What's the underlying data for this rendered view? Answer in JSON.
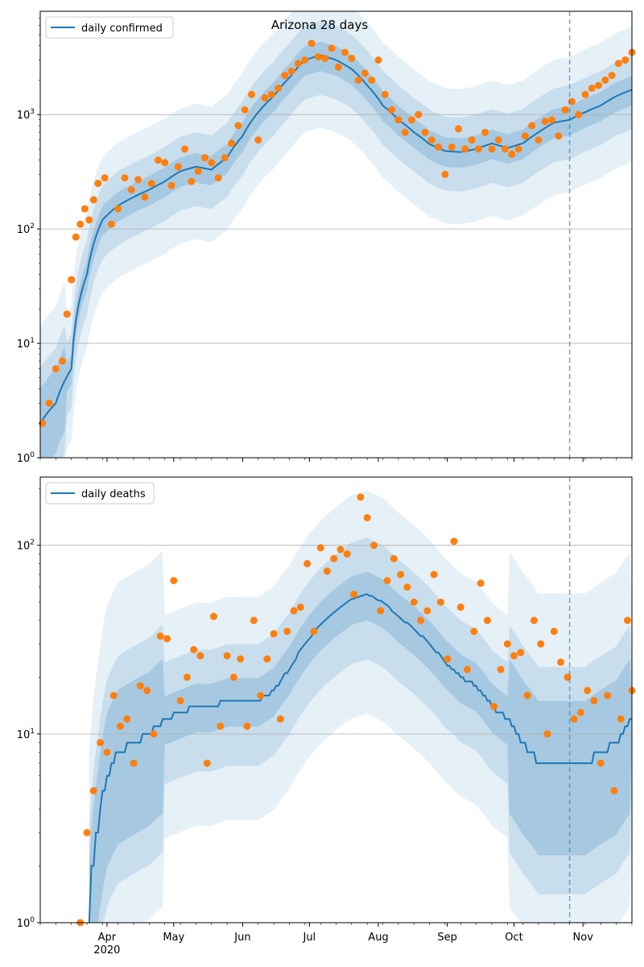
{
  "figure": {
    "title": "Arizona 28 days"
  },
  "chart_data": [
    {
      "type": "line",
      "yscale": "log",
      "ylim": [
        1,
        8000
      ],
      "xlim": [
        "2020-03-02",
        "2020-11-23"
      ],
      "grid": true,
      "legend": {
        "position": "top-left",
        "entries": [
          "daily confirmed"
        ]
      },
      "y_tick_labels": [
        "10^0",
        "10^1",
        "10^2",
        "10^3"
      ],
      "forecast_start": "2020-10-26",
      "series": [
        {
          "name": "daily confirmed",
          "x": [
            "2020-03-02",
            "2020-03-09",
            "2020-03-16",
            "2020-03-23",
            "2020-03-30",
            "2020-04-06",
            "2020-04-13",
            "2020-04-20",
            "2020-04-27",
            "2020-05-04",
            "2020-05-11",
            "2020-05-18",
            "2020-05-25",
            "2020-06-01",
            "2020-06-08",
            "2020-06-15",
            "2020-06-22",
            "2020-06-29",
            "2020-07-06",
            "2020-07-13",
            "2020-07-20",
            "2020-07-27",
            "2020-08-03",
            "2020-08-10",
            "2020-08-17",
            "2020-08-24",
            "2020-08-31",
            "2020-09-07",
            "2020-09-14",
            "2020-09-21",
            "2020-09-28",
            "2020-10-05",
            "2020-10-12",
            "2020-10-19",
            "2020-10-26",
            "2020-11-02",
            "2020-11-09",
            "2020-11-16",
            "2020-11-23"
          ],
          "y": [
            2,
            3,
            6,
            40,
            120,
            160,
            190,
            220,
            260,
            320,
            350,
            330,
            420,
            650,
            1050,
            1450,
            2100,
            3000,
            3300,
            3000,
            2500,
            1800,
            1200,
            900,
            700,
            550,
            480,
            470,
            500,
            560,
            510,
            560,
            700,
            850,
            900,
            1050,
            1200,
            1450,
            1650
          ]
        }
      ],
      "observations_confirmed": {
        "x": [
          "2020-03-03",
          "2020-03-06",
          "2020-03-09",
          "2020-03-12",
          "2020-03-14",
          "2020-03-16",
          "2020-03-18",
          "2020-03-20",
          "2020-03-22",
          "2020-03-24",
          "2020-03-26",
          "2020-03-28",
          "2020-03-31",
          "2020-04-03",
          "2020-04-06",
          "2020-04-09",
          "2020-04-12",
          "2020-04-15",
          "2020-04-18",
          "2020-04-21",
          "2020-04-24",
          "2020-04-27",
          "2020-04-30",
          "2020-05-03",
          "2020-05-06",
          "2020-05-09",
          "2020-05-12",
          "2020-05-15",
          "2020-05-18",
          "2020-05-21",
          "2020-05-24",
          "2020-05-27",
          "2020-05-30",
          "2020-06-02",
          "2020-06-05",
          "2020-06-08",
          "2020-06-11",
          "2020-06-14",
          "2020-06-17",
          "2020-06-20",
          "2020-06-23",
          "2020-06-26",
          "2020-06-29",
          "2020-07-02",
          "2020-07-05",
          "2020-07-08",
          "2020-07-11",
          "2020-07-14",
          "2020-07-17",
          "2020-07-20",
          "2020-07-23",
          "2020-07-26",
          "2020-07-29",
          "2020-08-01",
          "2020-08-04",
          "2020-08-07",
          "2020-08-10",
          "2020-08-13",
          "2020-08-16",
          "2020-08-19",
          "2020-08-22",
          "2020-08-25",
          "2020-08-28",
          "2020-08-31",
          "2020-09-03",
          "2020-09-06",
          "2020-09-09",
          "2020-09-12",
          "2020-09-15",
          "2020-09-18",
          "2020-09-21",
          "2020-09-24",
          "2020-09-27",
          "2020-09-30",
          "2020-10-03",
          "2020-10-06",
          "2020-10-09",
          "2020-10-12",
          "2020-10-15",
          "2020-10-18",
          "2020-10-21",
          "2020-10-24",
          "2020-10-27",
          "2020-10-30",
          "2020-11-02",
          "2020-11-05",
          "2020-11-08",
          "2020-11-11",
          "2020-11-14",
          "2020-11-17",
          "2020-11-20",
          "2020-11-23"
        ],
        "y": [
          2,
          3,
          6,
          7,
          18,
          36,
          85,
          110,
          150,
          120,
          180,
          250,
          280,
          110,
          150,
          280,
          220,
          270,
          190,
          250,
          400,
          380,
          240,
          350,
          500,
          260,
          320,
          420,
          380,
          280,
          420,
          560,
          800,
          1100,
          1500,
          600,
          1400,
          1500,
          1700,
          2200,
          2400,
          2800,
          3000,
          4200,
          3200,
          3100,
          3800,
          2600,
          3500,
          3100,
          2000,
          2300,
          2000,
          3000,
          1500,
          1100,
          900,
          700,
          900,
          1000,
          700,
          600,
          520,
          300,
          520,
          750,
          500,
          600,
          500,
          700,
          500,
          600,
          500,
          450,
          500,
          650,
          800,
          600,
          870,
          900,
          650,
          1100,
          1300,
          1000,
          1500,
          1700,
          1800,
          2000,
          2200,
          2800,
          3000,
          3500
        ]
      }
    },
    {
      "type": "line",
      "yscale": "log",
      "ylim": [
        1,
        230
      ],
      "xlim": [
        "2020-03-02",
        "2020-11-23"
      ],
      "grid": true,
      "legend": {
        "position": "top-left",
        "entries": [
          "daily deaths"
        ]
      },
      "y_tick_labels": [
        "10^0",
        "10^1",
        "10^2"
      ],
      "x_tick_labels": [
        "Apr\n2020",
        "May",
        "Jun",
        "Jul",
        "Aug",
        "Sep",
        "Oct",
        "Nov"
      ],
      "forecast_start": "2020-10-26",
      "series": [
        {
          "name": "daily deaths",
          "x": [
            "2020-03-24",
            "2020-03-28",
            "2020-04-01",
            "2020-04-06",
            "2020-04-13",
            "2020-04-20",
            "2020-04-27",
            "2020-05-04",
            "2020-05-11",
            "2020-05-18",
            "2020-05-25",
            "2020-06-01",
            "2020-06-08",
            "2020-06-15",
            "2020-06-22",
            "2020-06-29",
            "2020-07-06",
            "2020-07-13",
            "2020-07-20",
            "2020-07-27",
            "2020-08-03",
            "2020-08-10",
            "2020-08-17",
            "2020-08-24",
            "2020-08-31",
            "2020-09-07",
            "2020-09-14",
            "2020-09-21",
            "2020-09-28",
            "2020-10-05",
            "2020-10-12",
            "2020-10-19",
            "2020-10-26",
            "2020-11-02",
            "2020-11-09",
            "2020-11-16",
            "2020-11-23"
          ],
          "y": [
            1,
            3,
            6,
            8,
            9,
            10,
            12,
            13,
            14,
            14,
            15,
            15,
            15,
            17,
            22,
            30,
            38,
            45,
            52,
            55,
            50,
            42,
            36,
            30,
            24,
            20,
            18,
            14,
            12,
            9,
            7,
            7,
            7,
            7,
            8,
            9,
            12
          ]
        }
      ],
      "observations_deaths": {
        "x": [
          "2020-03-20",
          "2020-03-23",
          "2020-03-26",
          "2020-03-29",
          "2020-04-01",
          "2020-04-04",
          "2020-04-07",
          "2020-04-10",
          "2020-04-13",
          "2020-04-16",
          "2020-04-19",
          "2020-04-22",
          "2020-04-25",
          "2020-04-28",
          "2020-05-01",
          "2020-05-04",
          "2020-05-07",
          "2020-05-10",
          "2020-05-13",
          "2020-05-16",
          "2020-05-19",
          "2020-05-22",
          "2020-05-25",
          "2020-05-28",
          "2020-05-31",
          "2020-06-03",
          "2020-06-06",
          "2020-06-09",
          "2020-06-12",
          "2020-06-15",
          "2020-06-18",
          "2020-06-21",
          "2020-06-24",
          "2020-06-27",
          "2020-06-30",
          "2020-07-03",
          "2020-07-06",
          "2020-07-09",
          "2020-07-12",
          "2020-07-15",
          "2020-07-18",
          "2020-07-21",
          "2020-07-24",
          "2020-07-27",
          "2020-07-30",
          "2020-08-02",
          "2020-08-05",
          "2020-08-08",
          "2020-08-11",
          "2020-08-14",
          "2020-08-17",
          "2020-08-20",
          "2020-08-23",
          "2020-08-26",
          "2020-08-29",
          "2020-09-01",
          "2020-09-04",
          "2020-09-07",
          "2020-09-10",
          "2020-09-13",
          "2020-09-16",
          "2020-09-19",
          "2020-09-22",
          "2020-09-25",
          "2020-09-28",
          "2020-10-01",
          "2020-10-04",
          "2020-10-07",
          "2020-10-10",
          "2020-10-13",
          "2020-10-16",
          "2020-10-19",
          "2020-10-22",
          "2020-10-25",
          "2020-10-28",
          "2020-10-31",
          "2020-11-03",
          "2020-11-06",
          "2020-11-09",
          "2020-11-12",
          "2020-11-15",
          "2020-11-18",
          "2020-11-21",
          "2020-11-23"
        ],
        "y": [
          1,
          3,
          5,
          9,
          8,
          16,
          11,
          12,
          7,
          18,
          17,
          10,
          33,
          32,
          65,
          15,
          20,
          28,
          26,
          7,
          42,
          11,
          26,
          20,
          25,
          11,
          40,
          16,
          25,
          34,
          12,
          35,
          45,
          47,
          80,
          35,
          97,
          73,
          85,
          95,
          90,
          55,
          180,
          140,
          100,
          45,
          65,
          85,
          70,
          60,
          50,
          40,
          45,
          70,
          50,
          25,
          105,
          47,
          22,
          35,
          63,
          40,
          14,
          22,
          30,
          26,
          27,
          16,
          40,
          30,
          10,
          35,
          24,
          20,
          12,
          13,
          17,
          15,
          7,
          16,
          5,
          12,
          40,
          17
        ]
      }
    }
  ]
}
